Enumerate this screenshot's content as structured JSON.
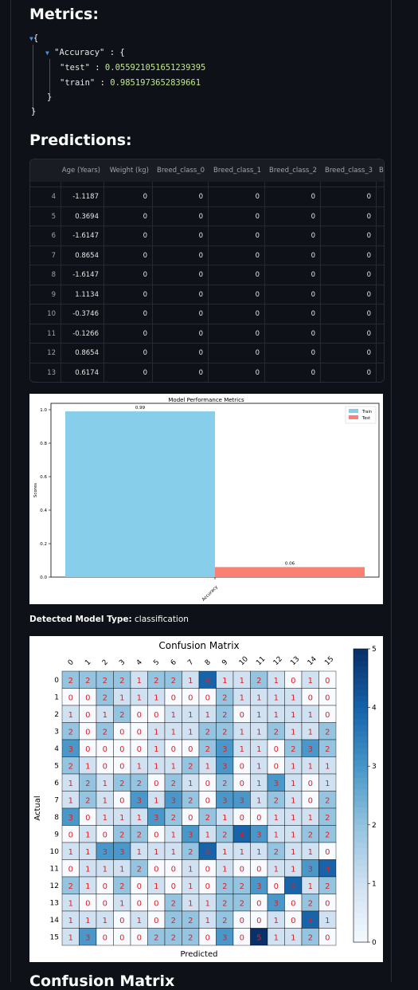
{
  "metrics": {
    "heading": "Metrics:",
    "open_brace": "{",
    "close_brace": "}",
    "inner_close": "}",
    "accuracy_key": "\"Accuracy\"",
    "test_key": "\"test\"",
    "test_value": "0.055921051651239395",
    "train_key": "\"train\"",
    "train_value": "0.9851973652839661",
    "colon": ":",
    "inner_open": "{"
  },
  "predictions": {
    "heading": "Predictions:",
    "columns": [
      "Age (Years)",
      "Weight (kg)",
      "Breed_class_0",
      "Breed_class_1",
      "Breed_class_2",
      "Breed_class_3",
      "B"
    ],
    "rows": [
      [
        "4",
        "-1.1187",
        "0",
        "0",
        "0",
        "0",
        "0"
      ],
      [
        "5",
        "0.3694",
        "0",
        "0",
        "0",
        "0",
        "0"
      ],
      [
        "6",
        "-1.6147",
        "0",
        "0",
        "0",
        "0",
        "0"
      ],
      [
        "7",
        "0.8654",
        "0",
        "0",
        "0",
        "0",
        "0"
      ],
      [
        "8",
        "-1.6147",
        "0",
        "0",
        "0",
        "0",
        "0"
      ],
      [
        "9",
        "1.1134",
        "0",
        "0",
        "0",
        "0",
        "0"
      ],
      [
        "10",
        "-0.3746",
        "0",
        "0",
        "0",
        "0",
        "0"
      ],
      [
        "11",
        "-0.1266",
        "0",
        "0",
        "0",
        "0",
        "0"
      ],
      [
        "12",
        "0.8654",
        "0",
        "0",
        "0",
        "0",
        "0"
      ],
      [
        "13",
        "0.6174",
        "0",
        "0",
        "0",
        "0",
        "0"
      ]
    ]
  },
  "model_type": {
    "label": "Detected Model Type:",
    "value": "classification"
  },
  "chart_data": [
    {
      "type": "bar",
      "title": "Model Performance Metrics",
      "categories": [
        "Accuracy"
      ],
      "ylabel": "Scores",
      "xlabel": "",
      "ylim": [
        0,
        1.0
      ],
      "yticks": [
        "0.0",
        "0.2",
        "0.4",
        "0.6",
        "0.8",
        "1.0"
      ],
      "series": [
        {
          "name": "Train",
          "values": [
            0.99
          ],
          "label": "0.99",
          "color": "#87ceeb"
        },
        {
          "name": "Test",
          "values": [
            0.06
          ],
          "label": "0.06",
          "color": "#fa8072"
        }
      ],
      "legend": "top-right",
      "grid": false
    },
    {
      "type": "heatmap",
      "title": "Confusion Matrix",
      "xlabel": "Predicted",
      "ylabel": "Actual",
      "labels": [
        "0",
        "1",
        "2",
        "3",
        "4",
        "5",
        "6",
        "7",
        "8",
        "9",
        "10",
        "11",
        "12",
        "13",
        "14",
        "15"
      ],
      "colorbar_ticks": [
        "0",
        "1",
        "2",
        "3",
        "4",
        "5"
      ],
      "vmin": 0,
      "vmax": 5,
      "matrix": [
        [
          2,
          2,
          2,
          2,
          1,
          2,
          2,
          1,
          4,
          1,
          1,
          2,
          1,
          0,
          1,
          0
        ],
        [
          0,
          0,
          2,
          1,
          1,
          1,
          0,
          0,
          0,
          2,
          1,
          1,
          1,
          1,
          0,
          0
        ],
        [
          1,
          0,
          1,
          2,
          0,
          0,
          1,
          1,
          1,
          2,
          0,
          1,
          1,
          1,
          1,
          0
        ],
        [
          2,
          0,
          2,
          0,
          0,
          1,
          1,
          1,
          2,
          2,
          1,
          1,
          2,
          1,
          1,
          2
        ],
        [
          3,
          0,
          0,
          0,
          0,
          1,
          0,
          0,
          2,
          3,
          1,
          1,
          0,
          2,
          3,
          2
        ],
        [
          2,
          1,
          0,
          0,
          1,
          1,
          1,
          2,
          1,
          3,
          0,
          1,
          0,
          1,
          1,
          1
        ],
        [
          1,
          2,
          1,
          2,
          2,
          0,
          2,
          1,
          0,
          2,
          0,
          1,
          3,
          1,
          0,
          1
        ],
        [
          1,
          2,
          1,
          0,
          3,
          1,
          3,
          2,
          0,
          3,
          3,
          1,
          2,
          1,
          0,
          2
        ],
        [
          3,
          0,
          1,
          1,
          1,
          3,
          2,
          0,
          2,
          1,
          0,
          0,
          1,
          1,
          1,
          2
        ],
        [
          0,
          1,
          0,
          2,
          2,
          0,
          1,
          3,
          1,
          2,
          4,
          3,
          1,
          1,
          2,
          2
        ],
        [
          1,
          1,
          3,
          3,
          1,
          1,
          1,
          2,
          4,
          1,
          1,
          1,
          2,
          1,
          1,
          0
        ],
        [
          0,
          1,
          1,
          1,
          2,
          0,
          0,
          1,
          0,
          1,
          0,
          0,
          1,
          1,
          3,
          4
        ],
        [
          2,
          1,
          0,
          2,
          0,
          1,
          0,
          1,
          0,
          2,
          2,
          3,
          0,
          4,
          1,
          2
        ],
        [
          1,
          0,
          0,
          1,
          0,
          0,
          2,
          1,
          1,
          2,
          2,
          0,
          3,
          0,
          2,
          0
        ],
        [
          1,
          1,
          1,
          0,
          1,
          0,
          2,
          2,
          1,
          2,
          0,
          0,
          1,
          0,
          4,
          1
        ],
        [
          1,
          3,
          0,
          0,
          0,
          2,
          2,
          2,
          0,
          3,
          0,
          5,
          1,
          1,
          2,
          0
        ]
      ]
    }
  ],
  "next_heading": "Confusion Matrix"
}
